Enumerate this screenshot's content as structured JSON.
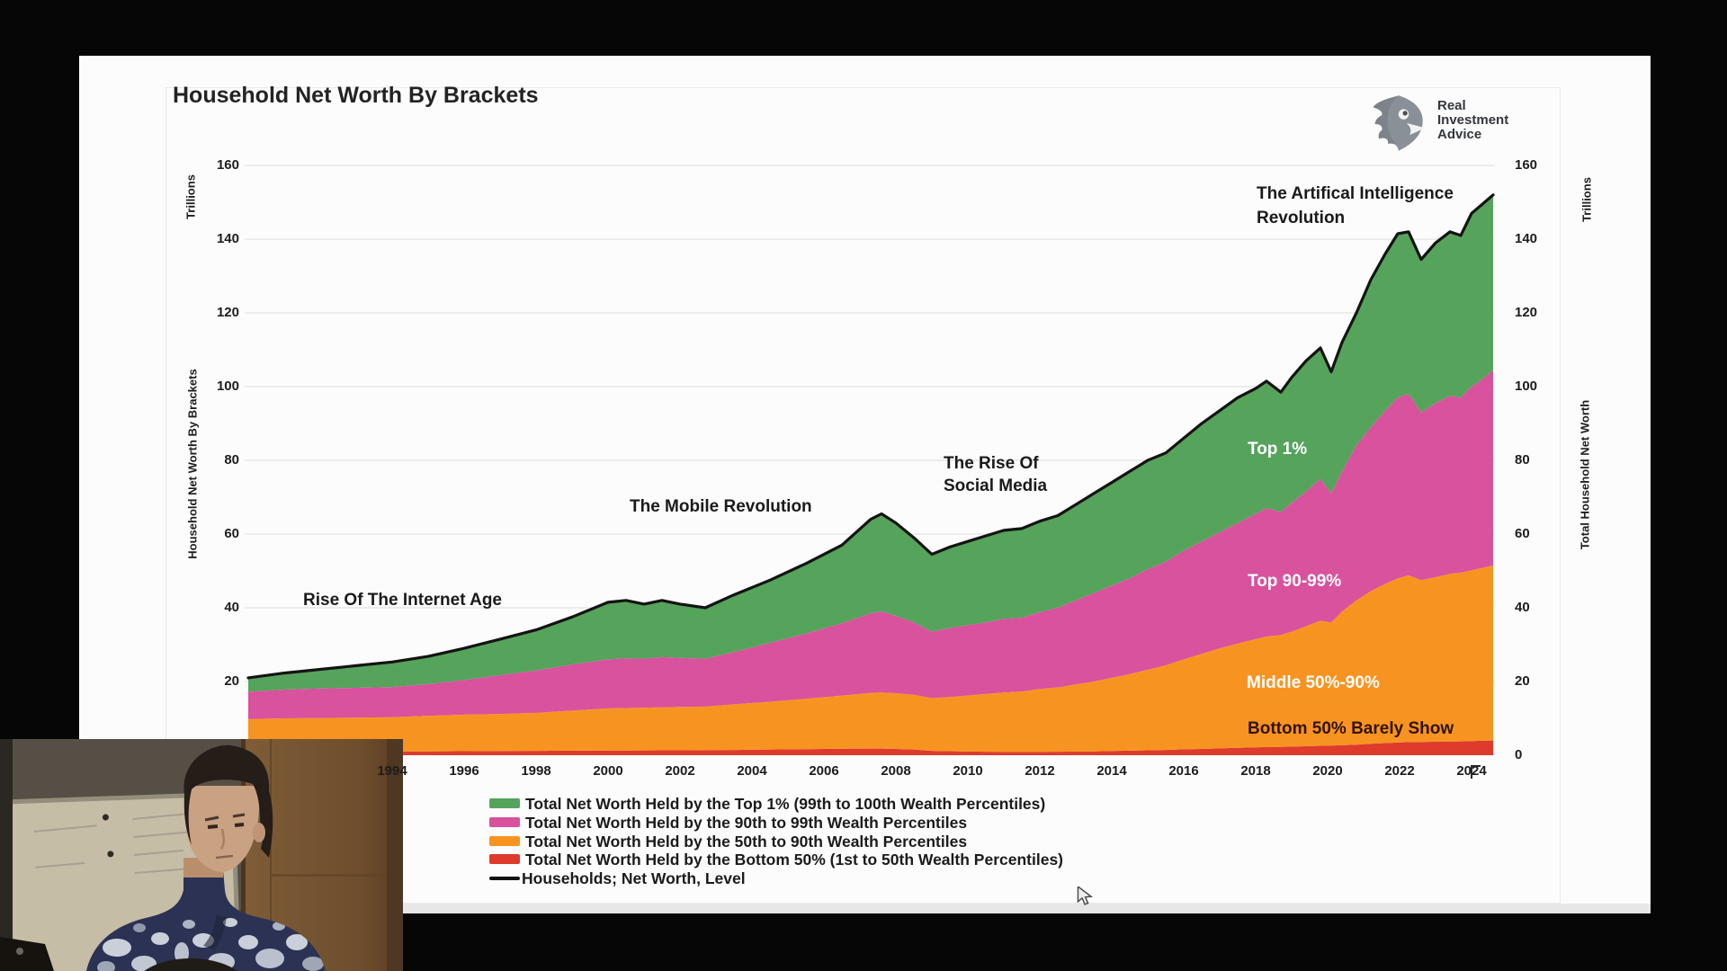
{
  "page": {
    "background": "#060606"
  },
  "chart": {
    "title": "Household Net Worth By Brackets",
    "left_axis": {
      "unit_label": "Trillions",
      "axis_label": "Household Net Worth By Brackets",
      "ticks": [
        160,
        140,
        120,
        100,
        80,
        60,
        40,
        20
      ]
    },
    "right_axis": {
      "unit_label": "Trillions",
      "axis_label": "Total Household Net Worth",
      "ticks": [
        160,
        140,
        120,
        100,
        80,
        60,
        40,
        20,
        0
      ]
    },
    "x_axis": {
      "years": [
        1994,
        1996,
        1998,
        2000,
        2002,
        2004,
        2006,
        2008,
        2010,
        2012,
        2014,
        2016,
        2018,
        2020,
        2022,
        2024
      ]
    },
    "annotations": {
      "internet": "Rise Of The Internet Age",
      "mobile": "The Mobile Revolution",
      "social_1": "The Rise Of",
      "social_2": "Social Media",
      "ai_1": "The Artifical Intelligence",
      "ai_2": "Revolution"
    },
    "area_labels": {
      "top1": "Top 1%",
      "top90": "Top 90-99%",
      "middle": "Middle 50%-90%",
      "bottom": "Bottom 50% Barely Show"
    },
    "legend": [
      {
        "label": "Total Net Worth Held by the Top 1% (99th to 100th Wealth Percentiles)",
        "swatch": "area",
        "color": "#56a35c"
      },
      {
        "label": "Total Net Worth Held by the 90th to 99th Wealth Percentiles",
        "swatch": "area",
        "color": "#d9529e"
      },
      {
        "label": "Total Net Worth Held by the 50th to 90th Wealth Percentiles",
        "swatch": "area",
        "color": "#f79421"
      },
      {
        "label": "Total Net Worth Held by the Bottom 50% (1st to 50th Wealth Percentiles)",
        "swatch": "area",
        "color": "#de3b2c"
      },
      {
        "label": "Households; Net Worth, Level",
        "swatch": "line",
        "color": "#111111"
      }
    ],
    "colors": {
      "top1": "#56a35c",
      "next9": "#d9529e",
      "mid40": "#f79421",
      "bottom50": "#de3b2c",
      "line": "#141414",
      "grid": "#ececec"
    }
  },
  "logo": {
    "brand_line1": "Real",
    "brand_line2": "Investment",
    "brand_line3": "Advice",
    "icon": "falcon-icon",
    "color": "#7e838b"
  },
  "webcam": {
    "scene": "presenter in patterned shirt in front of whiteboard and wooden door"
  },
  "chart_data": {
    "type": "area",
    "stacked": true,
    "title": "Household Net Worth By Brackets",
    "ylabel_left": "Household Net Worth By Brackets (Trillions)",
    "ylabel_right": "Total Household Net Worth (Trillions)",
    "ylim": [
      0,
      160
    ],
    "xlim": [
      1990,
      2024.75
    ],
    "grid": "horizontal",
    "legend_position": "bottom",
    "x": [
      1990,
      1991,
      1992,
      1993,
      1994,
      1995,
      1996,
      1997,
      1998,
      1999,
      2000,
      2000.5,
      2001,
      2001.5,
      2002,
      2002.7,
      2003.5,
      2004.5,
      2005.5,
      2006.5,
      2007.3,
      2007.6,
      2008,
      2008.5,
      2009,
      2009.5,
      2010,
      2010.5,
      2011,
      2011.5,
      2012,
      2012.5,
      2013,
      2013.5,
      2014,
      2014.5,
      2015,
      2015.5,
      2016,
      2016.5,
      2017,
      2017.5,
      2018,
      2018.3,
      2018.7,
      2019,
      2019.4,
      2019.8,
      2020.1,
      2020.4,
      2020.8,
      2021.2,
      2021.6,
      2021.95,
      2022.25,
      2022.6,
      2023,
      2023.4,
      2023.7,
      2024,
      2024.3,
      2024.6
    ],
    "boundaries": {
      "note": "cumulative stacked tops in $ Trillions",
      "bottom50_top": [
        0.8,
        0.85,
        0.9,
        0.95,
        1.0,
        1.05,
        1.1,
        1.15,
        1.2,
        1.25,
        1.3,
        1.3,
        1.32,
        1.33,
        1.35,
        1.38,
        1.45,
        1.55,
        1.65,
        1.75,
        1.8,
        1.8,
        1.7,
        1.55,
        1.2,
        1.1,
        1.0,
        0.95,
        0.9,
        0.88,
        0.9,
        0.95,
        1.0,
        1.05,
        1.15,
        1.25,
        1.35,
        1.45,
        1.6,
        1.7,
        1.85,
        2.0,
        2.15,
        2.2,
        2.25,
        2.35,
        2.45,
        2.55,
        2.6,
        2.7,
        2.85,
        3.1,
        3.3,
        3.45,
        3.55,
        3.6,
        3.65,
        3.7,
        3.75,
        3.85,
        3.92,
        4.0
      ],
      "mid40_top": [
        9.8,
        10.0,
        10.1,
        10.2,
        10.3,
        10.7,
        11.0,
        11.2,
        11.5,
        12.1,
        12.7,
        12.8,
        12.9,
        13.0,
        13.1,
        13.2,
        13.8,
        14.5,
        15.3,
        16.2,
        16.9,
        17.0,
        16.8,
        16.4,
        15.5,
        15.8,
        16.2,
        16.6,
        17.0,
        17.3,
        18.0,
        18.4,
        19.2,
        20.0,
        21.0,
        22.0,
        23.2,
        24.4,
        26.0,
        27.5,
        29.0,
        30.3,
        31.5,
        32.2,
        32.6,
        33.5,
        35.0,
        36.5,
        36.0,
        39.0,
        42.0,
        44.5,
        46.5,
        48.0,
        48.8,
        47.5,
        48.3,
        49.2,
        49.5,
        50.2,
        50.8,
        51.5
      ],
      "next9_top": [
        17.2,
        17.8,
        18.1,
        18.3,
        18.5,
        19.3,
        20.4,
        21.7,
        23.0,
        24.6,
        26.0,
        26.3,
        26.2,
        26.6,
        26.4,
        26.2,
        28.0,
        30.5,
        33.0,
        35.8,
        38.5,
        39.0,
        37.8,
        36.0,
        33.5,
        34.5,
        35.3,
        36.0,
        37.0,
        37.3,
        38.8,
        40.0,
        42.0,
        44.0,
        46.0,
        48.0,
        50.5,
        52.5,
        55.5,
        58.0,
        60.5,
        63.0,
        65.5,
        67.0,
        66.0,
        68.5,
        71.5,
        75.0,
        71.0,
        77.0,
        84.0,
        89.0,
        93.5,
        97.0,
        98.0,
        93.0,
        95.5,
        97.5,
        97.0,
        100.0,
        102.0,
        104.5
      ],
      "total": [
        21.0,
        22.3,
        23.3,
        24.3,
        25.3,
        26.8,
        29.0,
        31.5,
        34.0,
        37.5,
        41.5,
        42.0,
        41.0,
        42.0,
        41.0,
        40.0,
        43.5,
        47.5,
        52.0,
        57.0,
        64.0,
        65.5,
        63.0,
        59.0,
        54.5,
        56.5,
        58.0,
        59.5,
        61.0,
        61.5,
        63.5,
        65.0,
        68.0,
        71.0,
        74.0,
        77.0,
        80.0,
        82.0,
        86.0,
        90.0,
        93.5,
        97.0,
        99.5,
        101.5,
        98.5,
        102.5,
        107.0,
        110.5,
        104.0,
        112.0,
        120.0,
        129.0,
        136.0,
        141.5,
        142.0,
        134.5,
        139.0,
        142.0,
        141.0,
        147.0,
        149.5,
        152.0
      ]
    },
    "series_names": {
      "bottom50": "Total Net Worth Held by the Bottom 50% (1st to 50th Wealth Percentiles)",
      "mid40": "Total Net Worth Held by the 50th to 90th Wealth Percentiles",
      "next9": "Total Net Worth Held by the 90th to 99th Wealth Percentiles",
      "top1": "Total Net Worth Held by the Top 1% (99th to 100th Wealth Percentiles)",
      "line": "Households; Net Worth, Level"
    }
  }
}
